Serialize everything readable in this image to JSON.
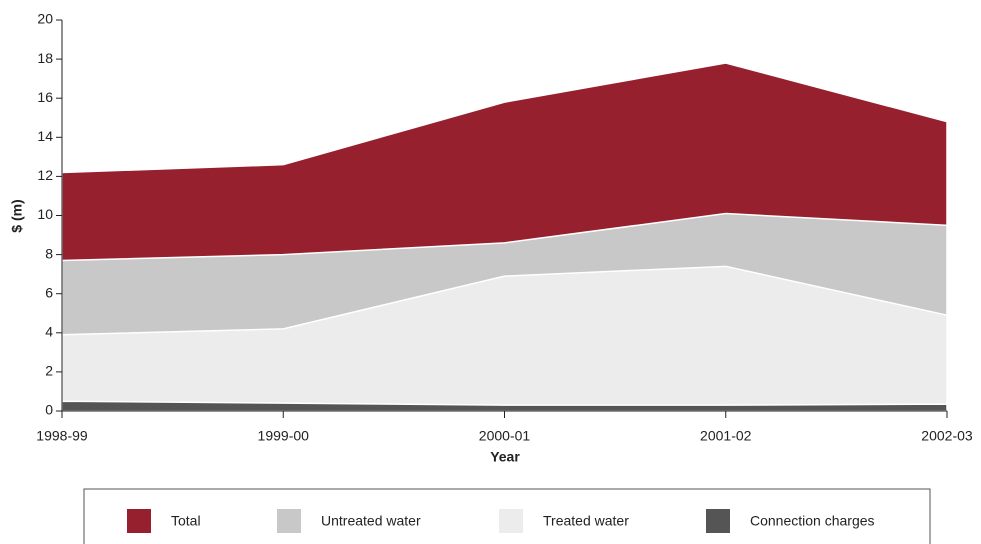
{
  "chart_data": {
    "type": "area",
    "x_label": "Year",
    "y_label": "$ (m)",
    "categories": [
      "1998-99",
      "1999-00",
      "2000-01",
      "2001-02",
      "2002-03"
    ],
    "series": [
      {
        "name": "Total",
        "color": "#97202e",
        "values": [
          12.2,
          12.6,
          15.8,
          17.8,
          14.8
        ]
      },
      {
        "name": "Untreated water",
        "color": "#c8c8c8",
        "values": [
          7.7,
          8.0,
          8.6,
          10.1,
          9.5
        ]
      },
      {
        "name": "Treated water",
        "color": "#ececec",
        "values": [
          3.9,
          4.2,
          6.9,
          7.4,
          4.9
        ]
      },
      {
        "name": "Connection charges",
        "color": "#555555",
        "values": [
          0.5,
          0.4,
          0.3,
          0.3,
          0.35
        ]
      }
    ],
    "ylim": [
      0,
      20
    ],
    "yticks": [
      0,
      2,
      4,
      6,
      8,
      10,
      12,
      14,
      16,
      18,
      20
    ],
    "legend": "bottom"
  }
}
